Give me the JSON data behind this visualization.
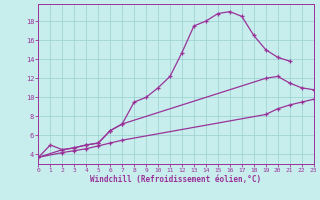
{
  "xlabel": "Windchill (Refroidissement éolien,°C)",
  "bg_color": "#c8eded",
  "grid_color": "#a0d4d4",
  "line_color": "#993399",
  "xmin": 0,
  "xmax": 23,
  "ymin": 3.0,
  "ymax": 19.8,
  "yticks": [
    4,
    6,
    8,
    10,
    12,
    14,
    16,
    18
  ],
  "xticks": [
    0,
    1,
    2,
    3,
    4,
    5,
    6,
    7,
    8,
    9,
    10,
    11,
    12,
    13,
    14,
    15,
    16,
    17,
    18,
    19,
    20,
    21,
    22,
    23
  ],
  "curve1_x": [
    0,
    1,
    2,
    3,
    4,
    5,
    6,
    7,
    8,
    9,
    10,
    11,
    12,
    13,
    14,
    15,
    16,
    17,
    18,
    19,
    20,
    21
  ],
  "curve1_y": [
    3.7,
    5.0,
    4.5,
    4.7,
    5.0,
    5.2,
    6.5,
    7.2,
    9.5,
    10.0,
    11.0,
    12.2,
    14.7,
    17.5,
    18.0,
    18.8,
    19.0,
    18.5,
    16.5,
    15.0,
    14.2,
    13.8
  ],
  "curve2_x": [
    0,
    2,
    3,
    4,
    5,
    6,
    7,
    19,
    20,
    21,
    22,
    23
  ],
  "curve2_y": [
    3.7,
    4.5,
    4.7,
    5.0,
    5.2,
    6.5,
    7.2,
    12.0,
    12.2,
    11.5,
    11.0,
    10.8
  ],
  "curve3_x": [
    0,
    2,
    3,
    4,
    5,
    6,
    7,
    19,
    20,
    21,
    22,
    23
  ],
  "curve3_y": [
    3.7,
    4.2,
    4.4,
    4.6,
    4.9,
    5.2,
    5.5,
    8.2,
    8.8,
    9.2,
    9.5,
    9.8
  ]
}
